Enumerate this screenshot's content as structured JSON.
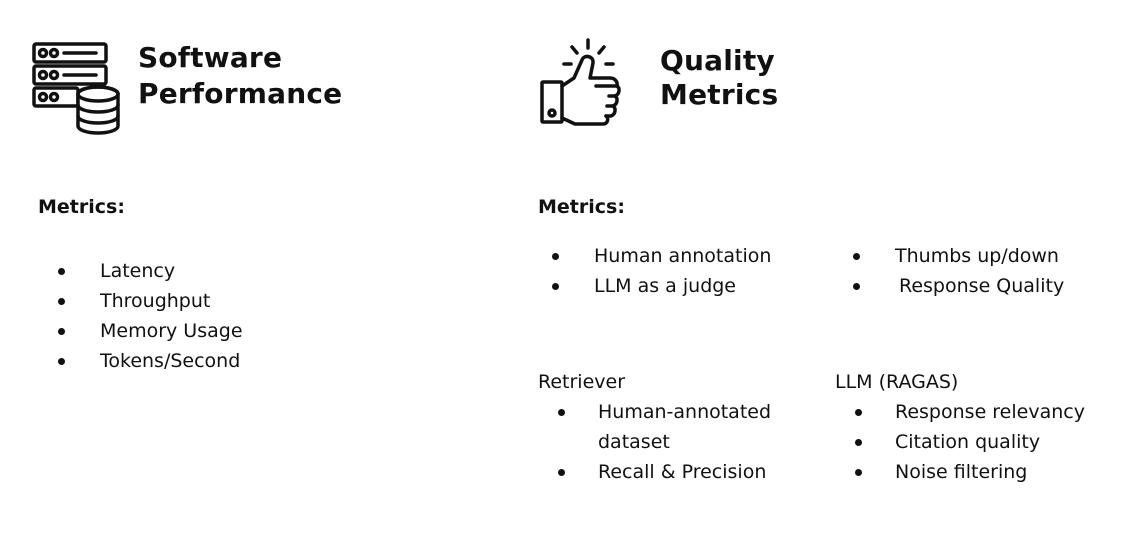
{
  "left": {
    "icon": "server-database-icon",
    "title_line1": "Software",
    "title_line2": "Performance",
    "metrics_heading": "Metrics:",
    "metrics": [
      "Latency",
      "Throughput",
      "Memory Usage",
      "Tokens/Second"
    ]
  },
  "right": {
    "icon": "thumbs-up-icon",
    "title_line1": "Quality",
    "title_line2": "Metrics",
    "metrics_heading": "Metrics:",
    "metrics_col1": [
      "Human annotation",
      "LLM as a judge"
    ],
    "metrics_col2": [
      "Thumbs up/down",
      "Response Quality"
    ],
    "retriever": {
      "heading": "Retriever",
      "items": [
        "Human-annotated dataset",
        "Recall & Precision"
      ]
    },
    "llm": {
      "heading": "LLM (RAGAS)",
      "items": [
        "Response relevancy",
        "Citation quality",
        "Noise filtering"
      ]
    }
  }
}
